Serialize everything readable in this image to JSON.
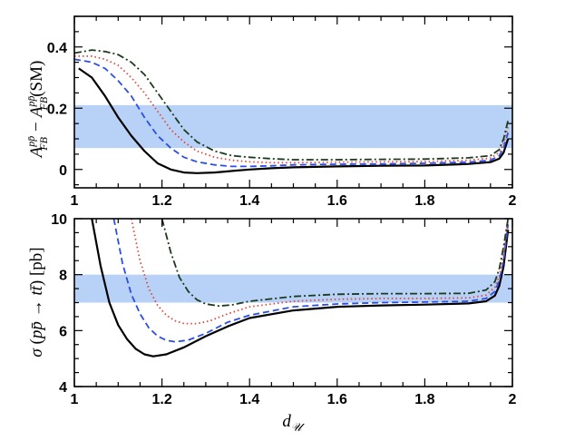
{
  "chart_data": [
    {
      "type": "line",
      "ylabel": "A_FB^{pp̄} − A_FB^{pp̄}(SM)",
      "xlim": [
        1.0,
        2.0
      ],
      "ylim": [
        -0.06,
        0.5
      ],
      "xticks": [
        "1",
        "1.2",
        "1.4",
        "1.6",
        "1.8",
        "2"
      ],
      "yticks": [
        "0",
        "0.2",
        "0.4"
      ],
      "band": [
        0.07,
        0.21
      ],
      "band_color": "#b8d1f6",
      "series": [
        {
          "name": "solid-black",
          "color": "#000000",
          "dash": "solid",
          "x": [
            1.01,
            1.04,
            1.07,
            1.1,
            1.13,
            1.16,
            1.19,
            1.22,
            1.25,
            1.28,
            1.32,
            1.36,
            1.4,
            1.45,
            1.5,
            1.6,
            1.7,
            1.8,
            1.9,
            1.95,
            1.97,
            1.98,
            1.99
          ],
          "y": [
            0.33,
            0.3,
            0.24,
            0.17,
            0.11,
            0.06,
            0.02,
            0.0,
            -0.01,
            -0.012,
            -0.01,
            -0.005,
            0.0,
            0.004,
            0.007,
            0.01,
            0.012,
            0.013,
            0.018,
            0.024,
            0.035,
            0.055,
            0.1
          ]
        },
        {
          "name": "dashed-blue",
          "color": "#2b4ee8",
          "dash": "dashed",
          "x": [
            1.0,
            1.04,
            1.07,
            1.1,
            1.13,
            1.16,
            1.19,
            1.22,
            1.25,
            1.28,
            1.32,
            1.36,
            1.4,
            1.45,
            1.5,
            1.6,
            1.7,
            1.8,
            1.9,
            1.95,
            1.97,
            1.98,
            1.99
          ],
          "y": [
            0.36,
            0.35,
            0.33,
            0.29,
            0.24,
            0.17,
            0.11,
            0.07,
            0.04,
            0.025,
            0.015,
            0.01,
            0.01,
            0.012,
            0.015,
            0.017,
            0.018,
            0.02,
            0.024,
            0.03,
            0.045,
            0.07,
            0.12
          ]
        },
        {
          "name": "dotted-red",
          "color": "#e0463a",
          "dash": "dotted",
          "x": [
            1.0,
            1.04,
            1.07,
            1.1,
            1.13,
            1.16,
            1.19,
            1.22,
            1.25,
            1.28,
            1.32,
            1.36,
            1.4,
            1.45,
            1.5,
            1.6,
            1.7,
            1.8,
            1.9,
            1.95,
            1.97,
            1.98,
            1.99
          ],
          "y": [
            0.37,
            0.37,
            0.36,
            0.34,
            0.3,
            0.25,
            0.19,
            0.13,
            0.09,
            0.06,
            0.04,
            0.03,
            0.025,
            0.022,
            0.022,
            0.024,
            0.025,
            0.026,
            0.03,
            0.037,
            0.055,
            0.085,
            0.14
          ]
        },
        {
          "name": "dashdot-darkgreen",
          "color": "#1c3a1e",
          "dash": "dashdot",
          "x": [
            1.0,
            1.04,
            1.07,
            1.1,
            1.13,
            1.16,
            1.19,
            1.22,
            1.25,
            1.28,
            1.32,
            1.36,
            1.4,
            1.45,
            1.5,
            1.6,
            1.7,
            1.8,
            1.9,
            1.95,
            1.97,
            1.98,
            1.99
          ],
          "y": [
            0.38,
            0.39,
            0.385,
            0.375,
            0.35,
            0.31,
            0.25,
            0.19,
            0.13,
            0.09,
            0.06,
            0.045,
            0.04,
            0.035,
            0.032,
            0.032,
            0.033,
            0.034,
            0.038,
            0.045,
            0.065,
            0.1,
            0.16
          ]
        }
      ]
    },
    {
      "type": "line",
      "ylabel": "σ(pp̄ → tt̄) [pb]",
      "xlabel": "d_U",
      "xlim": [
        1.0,
        2.0
      ],
      "ylim": [
        4,
        10
      ],
      "xticks": [
        "1",
        "1.2",
        "1.4",
        "1.6",
        "1.8",
        "2"
      ],
      "yticks": [
        "4",
        "6",
        "8",
        "10"
      ],
      "band": [
        7.0,
        8.0
      ],
      "band_color": "#b8d1f6",
      "series": [
        {
          "name": "solid-black",
          "color": "#000000",
          "dash": "solid",
          "x": [
            1.04,
            1.06,
            1.08,
            1.1,
            1.12,
            1.14,
            1.16,
            1.18,
            1.21,
            1.25,
            1.3,
            1.35,
            1.4,
            1.5,
            1.6,
            1.7,
            1.8,
            1.9,
            1.94,
            1.96,
            1.97,
            1.98,
            1.99
          ],
          "y": [
            10.0,
            8.3,
            7.0,
            6.2,
            5.7,
            5.35,
            5.15,
            5.08,
            5.15,
            5.4,
            5.8,
            6.15,
            6.45,
            6.72,
            6.85,
            6.9,
            6.93,
            6.97,
            7.05,
            7.25,
            7.6,
            8.3,
            9.6
          ]
        },
        {
          "name": "dashed-blue",
          "color": "#2b4ee8",
          "dash": "dashed",
          "x": [
            1.09,
            1.11,
            1.13,
            1.15,
            1.17,
            1.19,
            1.21,
            1.23,
            1.26,
            1.3,
            1.35,
            1.4,
            1.5,
            1.6,
            1.7,
            1.8,
            1.9,
            1.94,
            1.96,
            1.97,
            1.98,
            1.99
          ],
          "y": [
            10.0,
            8.4,
            7.3,
            6.6,
            6.1,
            5.8,
            5.65,
            5.6,
            5.66,
            5.9,
            6.3,
            6.55,
            6.85,
            6.95,
            7.0,
            7.02,
            7.05,
            7.15,
            7.4,
            7.8,
            8.5,
            9.8
          ]
        },
        {
          "name": "dotted-red",
          "color": "#e0463a",
          "dash": "dotted",
          "x": [
            1.13,
            1.15,
            1.17,
            1.19,
            1.21,
            1.23,
            1.25,
            1.28,
            1.31,
            1.35,
            1.4,
            1.5,
            1.6,
            1.7,
            1.8,
            1.9,
            1.94,
            1.96,
            1.97,
            1.98,
            1.99
          ],
          "y": [
            10.0,
            8.5,
            7.5,
            6.9,
            6.55,
            6.35,
            6.25,
            6.25,
            6.35,
            6.6,
            6.85,
            7.05,
            7.12,
            7.15,
            7.15,
            7.17,
            7.27,
            7.55,
            7.95,
            8.7,
            10.0
          ]
        },
        {
          "name": "dashdot-darkgreen",
          "color": "#1c3a1e",
          "dash": "dashdot",
          "x": [
            1.2,
            1.22,
            1.24,
            1.26,
            1.28,
            1.3,
            1.33,
            1.36,
            1.4,
            1.5,
            1.6,
            1.7,
            1.8,
            1.9,
            1.94,
            1.96,
            1.97,
            1.98,
            1.99
          ],
          "y": [
            10.0,
            8.8,
            7.9,
            7.4,
            7.1,
            6.95,
            6.88,
            6.92,
            7.05,
            7.22,
            7.3,
            7.32,
            7.32,
            7.33,
            7.45,
            7.75,
            8.2,
            9.0,
            10.0
          ]
        }
      ]
    }
  ]
}
